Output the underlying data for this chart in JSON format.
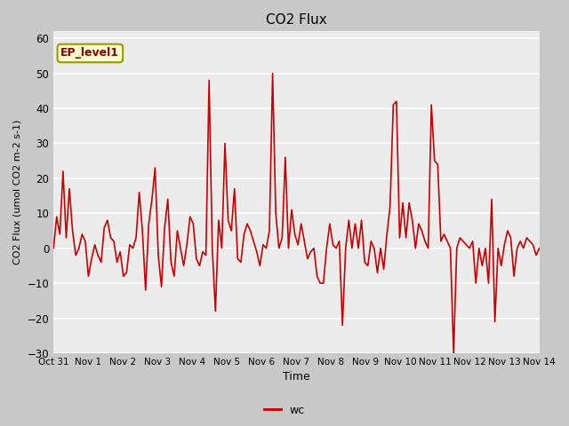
{
  "title": "CO2 Flux",
  "xlabel": "Time",
  "ylabel": "CO2 Flux (umol CO2 m-2 s-1)",
  "ylim": [
    -30,
    62
  ],
  "yticks": [
    -30,
    -20,
    -10,
    0,
    10,
    20,
    30,
    40,
    50,
    60
  ],
  "line_color": "#cc0000",
  "line_width": 1.2,
  "fig_bg_color": "#c8c8c8",
  "plot_bg_color": "#ebebeb",
  "legend_label": "wc",
  "annotation_text": "EP_level1",
  "annotation_bg": "#ffffcc",
  "annotation_border": "#999900",
  "annotation_text_color": "#8b0000",
  "tick_labels": [
    "Oct 31",
    "Nov 1",
    "Nov 2",
    "Nov 3",
    "Nov 4",
    "Nov 5",
    "Nov 6",
    "Nov 7",
    "Nov 8",
    "Nov 9",
    "Nov 10",
    "Nov 11",
    "Nov 12",
    "Nov 13",
    "Nov 14"
  ],
  "data_points": [
    0,
    9,
    4,
    22,
    3,
    17,
    5,
    -2,
    0,
    4,
    2,
    -8,
    -3,
    1,
    -2,
    -4,
    6,
    8,
    3,
    2,
    -4,
    -1,
    -8,
    -7,
    1,
    0,
    3,
    16,
    5,
    -12,
    7,
    14,
    23,
    -2,
    -11,
    6,
    14,
    -4,
    -8,
    5,
    0,
    -5,
    1,
    9,
    7,
    -3,
    -5,
    -1,
    -2,
    48,
    0,
    -18,
    8,
    0,
    30,
    8,
    5,
    17,
    -3,
    -4,
    4,
    7,
    5,
    2,
    -1,
    -5,
    1,
    0,
    5,
    50,
    10,
    0,
    3,
    26,
    0,
    11,
    4,
    1,
    7,
    2,
    -3,
    -1,
    0,
    -8,
    -10,
    -10,
    0,
    7,
    1,
    0,
    2,
    -22,
    0,
    8,
    0,
    7,
    0,
    8,
    -4,
    -5,
    2,
    0,
    -7,
    0,
    -6,
    4,
    12,
    41,
    42,
    3,
    13,
    3,
    13,
    8,
    0,
    7,
    5,
    2,
    0,
    41,
    25,
    24,
    2,
    4,
    2,
    0,
    -30,
    0,
    3,
    2,
    1,
    0,
    2,
    -10,
    0,
    -5,
    0,
    -10,
    14,
    -21,
    0,
    -5,
    1,
    5,
    3,
    -8,
    0,
    2,
    0,
    3,
    2,
    1,
    -2,
    0
  ]
}
